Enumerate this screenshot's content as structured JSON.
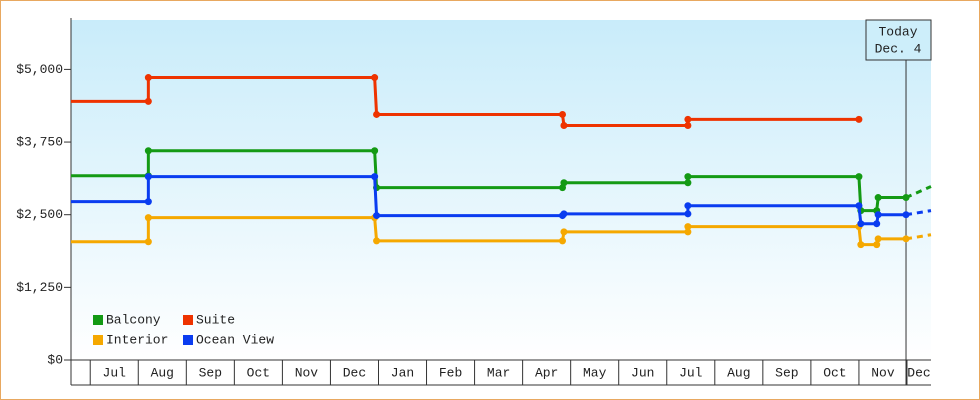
{
  "chart_data": {
    "type": "step-line",
    "categories": [
      null,
      "Jul",
      "Aug",
      "Sep",
      "Oct",
      "Nov",
      "Dec",
      "Jan",
      "Feb",
      "Mar",
      "Apr",
      "May",
      "Jun",
      "Jul",
      "Aug",
      "Sep",
      "Oct",
      "Nov",
      "Dec"
    ],
    "xlim": [
      0.6,
      18.5
    ],
    "ylim": [
      0,
      5850
    ],
    "yticks": [
      {
        "value": 0,
        "label": "$0"
      },
      {
        "value": 1250,
        "label": "$1,250"
      },
      {
        "value": 2500,
        "label": "$2,500"
      },
      {
        "value": 3750,
        "label": "$3,750"
      },
      {
        "value": 5000,
        "label": "$5,000"
      }
    ],
    "today": {
      "x": 17.98,
      "label": [
        "Today",
        "Dec. 4"
      ]
    },
    "series": [
      {
        "name": "Balcony",
        "color": "#149a14",
        "x": [
          0.6,
          2.21,
          2.21,
          6.92,
          6.96,
          10.83,
          10.86,
          13.44,
          13.44,
          17.0,
          17.04,
          17.37,
          17.4,
          17.98,
          18.5
        ],
        "values": [
          3170,
          3170,
          3600,
          3600,
          2965,
          2965,
          3050,
          3050,
          3155,
          3155,
          2570,
          2570,
          2795,
          2795,
          2985
        ]
      },
      {
        "name": "Suite",
        "color": "#ee3300",
        "x": [
          0.6,
          2.21,
          2.21,
          6.92,
          6.96,
          10.83,
          10.86,
          13.44,
          13.44,
          17.0
        ],
        "values": [
          4450,
          4450,
          4860,
          4860,
          4225,
          4225,
          4035,
          4035,
          4140,
          4140
        ]
      },
      {
        "name": "Interior",
        "color": "#f5a800",
        "x": [
          0.6,
          2.21,
          2.21,
          6.92,
          6.96,
          10.83,
          10.86,
          13.44,
          13.44,
          17.0,
          17.04,
          17.37,
          17.4,
          17.98,
          18.5
        ],
        "values": [
          2035,
          2035,
          2450,
          2450,
          2050,
          2050,
          2205,
          2205,
          2295,
          2295,
          1985,
          1985,
          2085,
          2085,
          2155
        ]
      },
      {
        "name": "Ocean View",
        "color": "#0a3cf0",
        "x": [
          0.6,
          2.21,
          2.21,
          6.92,
          6.96,
          10.83,
          10.86,
          13.44,
          13.44,
          17.0,
          17.04,
          17.37,
          17.4,
          17.98,
          18.5
        ],
        "values": [
          2725,
          2725,
          3155,
          3155,
          2485,
          2485,
          2515,
          2515,
          2655,
          2655,
          2345,
          2345,
          2500,
          2500,
          2570
        ]
      }
    ]
  }
}
